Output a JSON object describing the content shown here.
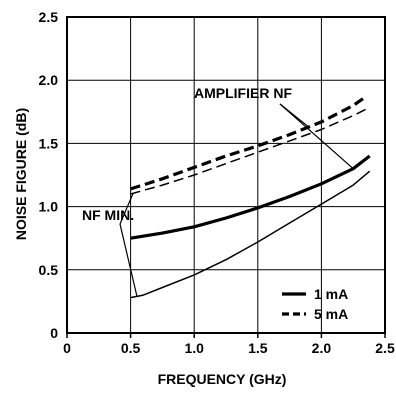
{
  "chart_data": {
    "type": "line",
    "title": "",
    "xlabel": "FREQUENCY (GHz)",
    "ylabel": "NOISE FIGURE (dB)",
    "xlim": [
      0,
      2.5
    ],
    "ylim": [
      0,
      2.5
    ],
    "x_ticks": [
      0,
      0.5,
      1.0,
      1.5,
      2.0,
      2.5
    ],
    "x_tick_labels": [
      "0",
      "0.5",
      "1.0",
      "1.5",
      "2.0",
      "2.5"
    ],
    "y_ticks": [
      0,
      0.5,
      1.0,
      1.5,
      2.0,
      2.5
    ],
    "y_tick_labels": [
      "0",
      "0.5",
      "1.0",
      "1.5",
      "2.0",
      "2.5"
    ],
    "grid": true,
    "legend_position": "bottom-right",
    "legend": [
      {
        "label": "1 mA",
        "style": "solid",
        "weight": "thick"
      },
      {
        "label": "5 mA",
        "style": "dashed",
        "weight": "thick"
      }
    ],
    "annotations": [
      {
        "text": "AMPLIFIER NF",
        "points_to": [
          "amp-5mA",
          "amp-1mA"
        ]
      },
      {
        "text": "NF MIN.",
        "points_to": [
          "nfmin-5mA",
          "nfmin-1mA"
        ]
      }
    ],
    "series": [
      {
        "id": "amp-5mA",
        "style": "dashed",
        "weight": "thick",
        "x": [
          0.5,
          0.75,
          1.0,
          1.25,
          1.5,
          1.75,
          2.0,
          2.25,
          2.35
        ],
        "y": [
          1.14,
          1.22,
          1.31,
          1.4,
          1.48,
          1.57,
          1.67,
          1.8,
          1.87
        ]
      },
      {
        "id": "nfmin-5mA",
        "style": "dashed",
        "weight": "thin",
        "x": [
          0.5,
          0.75,
          1.0,
          1.25,
          1.5,
          1.75,
          2.0,
          2.25,
          2.35
        ],
        "y": [
          1.1,
          1.17,
          1.25,
          1.34,
          1.43,
          1.52,
          1.61,
          1.72,
          1.77
        ]
      },
      {
        "id": "amp-1mA",
        "style": "solid",
        "weight": "thick",
        "x": [
          0.5,
          0.75,
          1.0,
          1.25,
          1.5,
          1.75,
          2.0,
          2.25,
          2.38
        ],
        "y": [
          0.75,
          0.79,
          0.84,
          0.91,
          0.99,
          1.08,
          1.18,
          1.3,
          1.4
        ]
      },
      {
        "id": "nfmin-1mA",
        "style": "solid",
        "weight": "thin",
        "x": [
          0.5,
          0.6,
          0.75,
          1.0,
          1.25,
          1.5,
          1.75,
          2.0,
          2.25,
          2.38
        ],
        "y": [
          0.28,
          0.3,
          0.36,
          0.46,
          0.58,
          0.72,
          0.87,
          1.02,
          1.17,
          1.28
        ]
      }
    ]
  }
}
